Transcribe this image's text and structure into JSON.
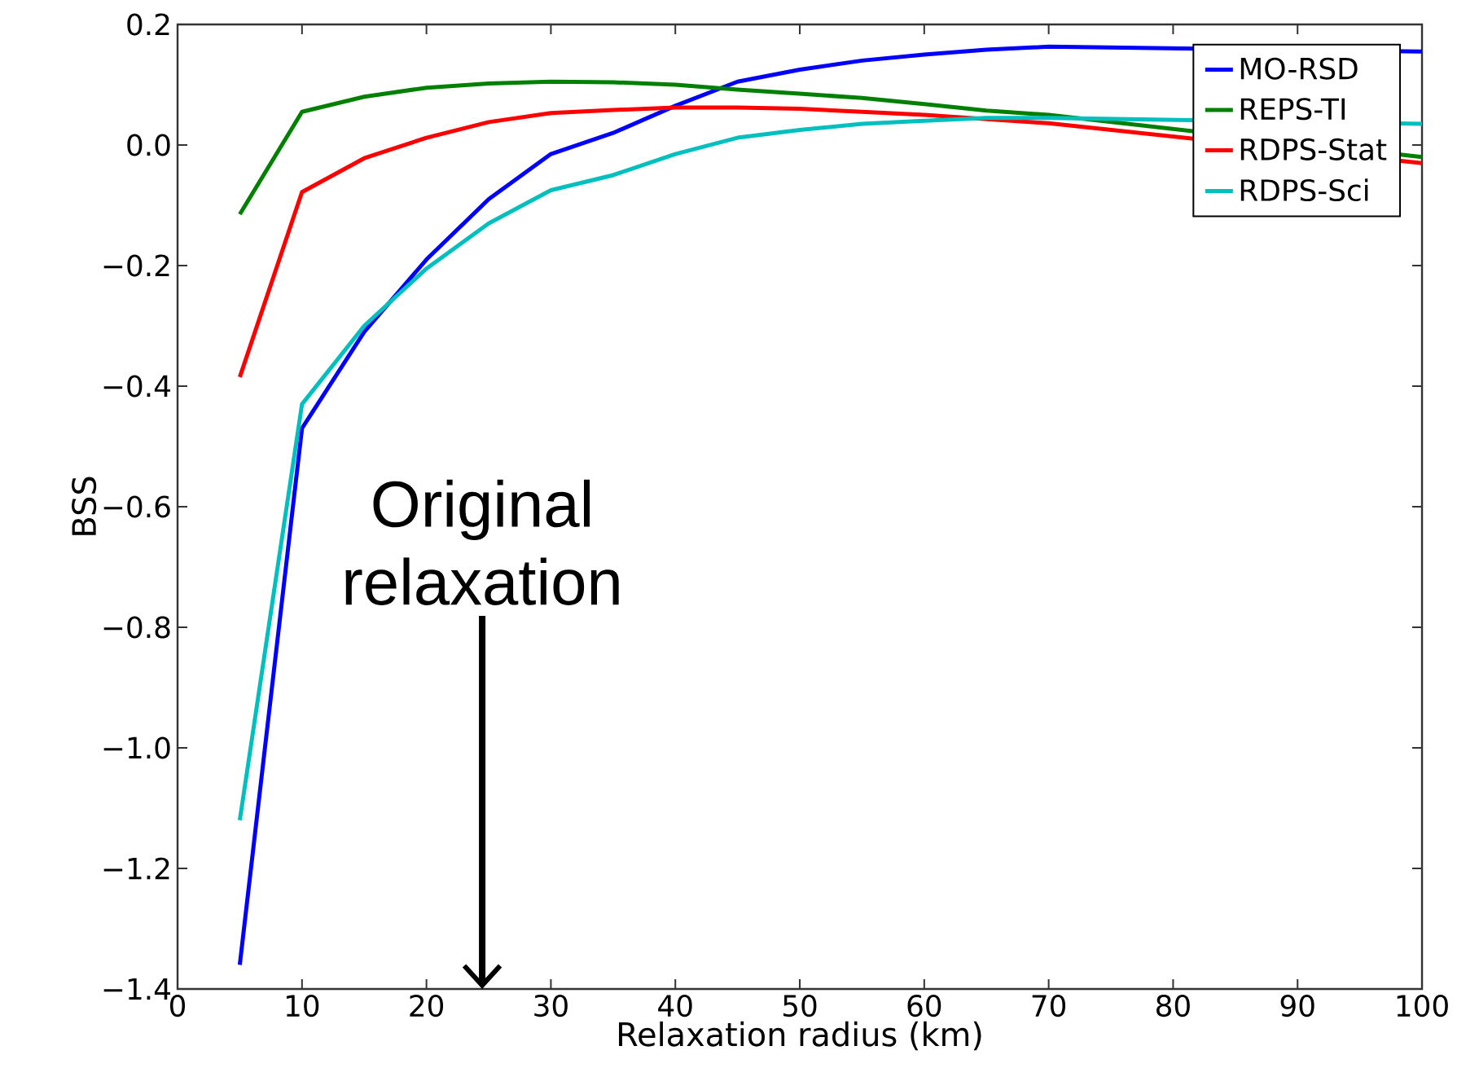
{
  "chart_data": {
    "type": "line",
    "xlabel": "Relaxation radius (km)",
    "ylabel": "BSS",
    "x": [
      5,
      10,
      15,
      20,
      25,
      30,
      35,
      40,
      45,
      50,
      55,
      60,
      65,
      70,
      75,
      80,
      85,
      90,
      95,
      100
    ],
    "series": [
      {
        "name": "MO-RSD",
        "color": "#0000ff",
        "values": [
          -1.36,
          -0.47,
          -0.31,
          -0.19,
          -0.09,
          -0.015,
          0.02,
          0.065,
          0.105,
          0.125,
          0.14,
          0.15,
          0.158,
          0.163,
          null,
          null,
          null,
          null,
          null,
          0.155
        ]
      },
      {
        "name": "REPS-TI",
        "color": "#008000",
        "values": [
          -0.115,
          0.055,
          0.08,
          0.095,
          0.102,
          0.105,
          0.104,
          0.1,
          0.092,
          0.085,
          0.078,
          0.068,
          0.057,
          0.05,
          null,
          null,
          null,
          null,
          null,
          -0.02
        ]
      },
      {
        "name": "RDPS-Stat",
        "color": "#ff0000",
        "values": [
          -0.385,
          -0.078,
          -0.022,
          0.012,
          0.038,
          0.053,
          0.058,
          0.062,
          0.062,
          0.06,
          0.055,
          0.05,
          0.043,
          0.036,
          null,
          null,
          null,
          null,
          null,
          -0.03
        ]
      },
      {
        "name": "RDPS-Sci",
        "color": "#00bfbf",
        "values": [
          -1.12,
          -0.43,
          -0.3,
          -0.205,
          -0.13,
          -0.075,
          -0.05,
          -0.015,
          0.012,
          0.025,
          0.035,
          0.04,
          0.045,
          0.045,
          null,
          null,
          null,
          null,
          null,
          0.035
        ]
      }
    ],
    "xlim": [
      0,
      100
    ],
    "xticks": [
      0,
      10,
      20,
      30,
      40,
      50,
      60,
      70,
      80,
      90,
      100
    ],
    "ylim": [
      -1.4,
      0.2
    ],
    "yticks": [
      {
        "value": -1.4,
        "label": "−1.4"
      },
      {
        "value": -1.2,
        "label": "−1.2"
      },
      {
        "value": -1.0,
        "label": "−1.0"
      },
      {
        "value": -0.8,
        "label": "−0.8"
      },
      {
        "value": -0.6,
        "label": "−0.6"
      },
      {
        "value": -0.4,
        "label": "−0.4"
      },
      {
        "value": -0.2,
        "label": "−0.2"
      },
      {
        "value": 0.0,
        "label": "0.0"
      },
      {
        "value": 0.2,
        "label": "0.2"
      }
    ],
    "legend": "top right",
    "grid": false,
    "marker": "none",
    "line_style": "solid",
    "annotations": [
      "Original relaxation"
    ]
  }
}
